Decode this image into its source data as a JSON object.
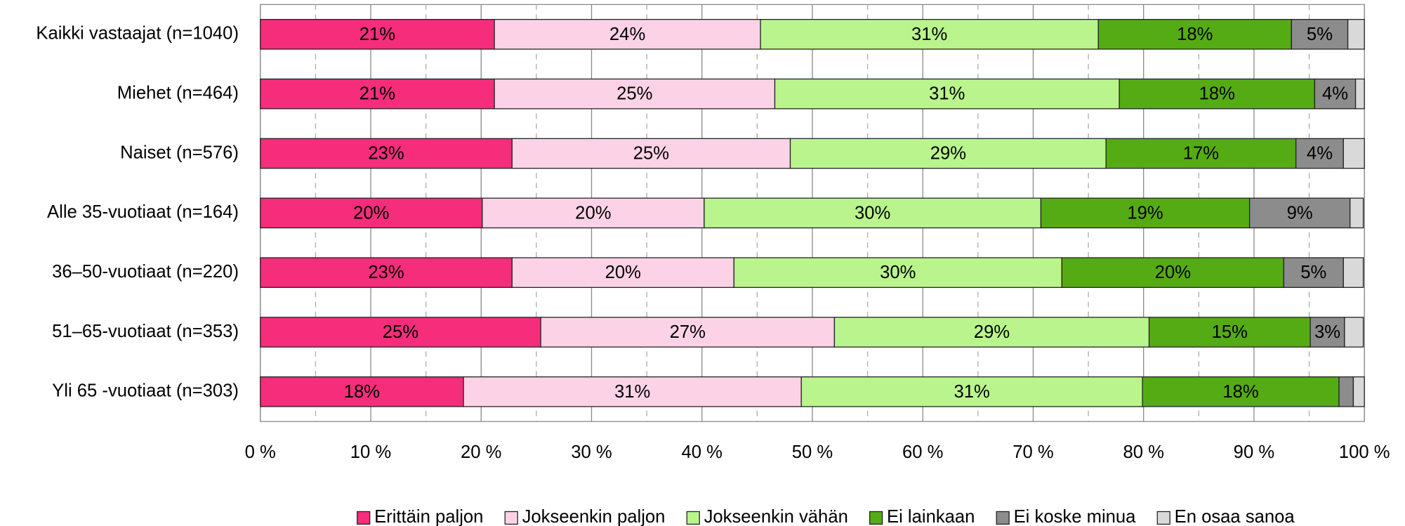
{
  "chart_data": {
    "type": "stacked_barh",
    "categories": [
      "Kaikki vastaajat (n=1040)",
      "Miehet (n=464)",
      "Naiset (n=576)",
      "Alle 35-vuotiaat (n=164)",
      "36–50-vuotiaat (n=220)",
      "51–65-vuotiaat (n=353)",
      "Yli 65 -vuotiaat (n=303)"
    ],
    "series": [
      {
        "name": "Erittäin paljon",
        "color": "#f52d7b",
        "values": [
          21.2,
          21.2,
          22.8,
          20.1,
          22.8,
          25.4,
          18.4
        ],
        "value_labels": [
          "21%",
          "21%",
          "23%",
          "20%",
          "23%",
          "25%",
          "18%"
        ]
      },
      {
        "name": "Jokseenkin paljon",
        "color": "#fcd3e6",
        "values": [
          24.1,
          25.4,
          25.2,
          20.1,
          20.1,
          26.6,
          30.6
        ],
        "value_labels": [
          "24%",
          "25%",
          "25%",
          "20%",
          "20%",
          "27%",
          "31%"
        ]
      },
      {
        "name": "Jokseenkin vähän",
        "color": "#b9f58c",
        "values": [
          30.6,
          31.2,
          28.6,
          30.5,
          29.7,
          28.5,
          30.9
        ],
        "value_labels": [
          "31%",
          "31%",
          "29%",
          "30%",
          "30%",
          "29%",
          "31%"
        ]
      },
      {
        "name": "Ei lainkaan",
        "color": "#55ab14",
        "values": [
          17.5,
          17.7,
          17.2,
          18.9,
          20.1,
          14.6,
          17.8
        ],
        "value_labels": [
          "18%",
          "18%",
          "17%",
          "19%",
          "20%",
          "15%",
          "18%"
        ]
      },
      {
        "name": "Ei koske minua",
        "color": "#8c8c8c",
        "values": [
          5.1,
          3.7,
          4.3,
          9.1,
          5.4,
          3.1,
          1.3
        ],
        "value_labels": [
          "5%",
          "4%",
          "4%",
          "9%",
          "5%",
          "3%",
          null
        ]
      },
      {
        "name": "En osaa sanoa",
        "color": "#d9d9d9",
        "values": [
          1.5,
          0.8,
          1.9,
          1.2,
          1.8,
          1.7,
          1.0
        ],
        "value_labels": [
          null,
          null,
          null,
          null,
          null,
          null,
          null
        ]
      }
    ],
    "xlim": [
      0,
      100
    ],
    "xticks": [
      {
        "value": 0,
        "label": "0 %"
      },
      {
        "value": 10,
        "label": "10 %"
      },
      {
        "value": 20,
        "label": "20 %"
      },
      {
        "value": 30,
        "label": "30 %"
      },
      {
        "value": 40,
        "label": "40 %"
      },
      {
        "value": 50,
        "label": "50 %"
      },
      {
        "value": 60,
        "label": "60 %"
      },
      {
        "value": 70,
        "label": "70 %"
      },
      {
        "value": 80,
        "label": "80 %"
      },
      {
        "value": 90,
        "label": "90 %"
      },
      {
        "value": 100,
        "label": "100 %"
      }
    ],
    "xminorticks": [
      5,
      15,
      25,
      35,
      45,
      55,
      65,
      75,
      85,
      95
    ],
    "grid": true,
    "legend": "bottom"
  }
}
